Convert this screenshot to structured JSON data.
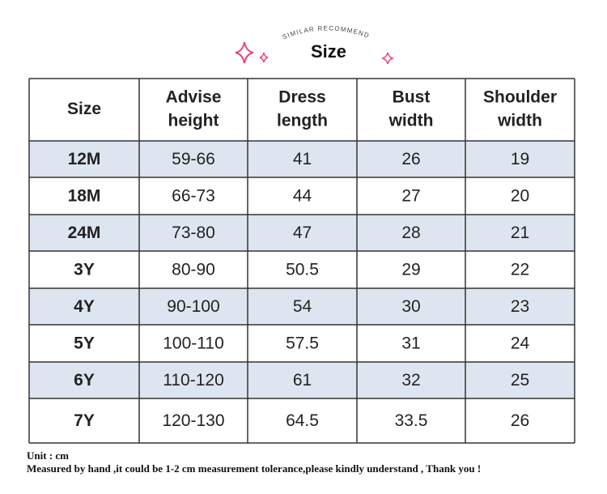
{
  "header": {
    "tagline": "SIMILAR RECOMMEND",
    "title": "Size"
  },
  "table": {
    "columns": [
      [
        "Size"
      ],
      [
        "Advise",
        "height"
      ],
      [
        "Dress",
        "length"
      ],
      [
        "Bust",
        "width"
      ],
      [
        "Shoulder",
        "width"
      ]
    ],
    "rows": [
      [
        "12M",
        "59-66",
        "41",
        "26",
        "19"
      ],
      [
        "18M",
        "66-73",
        "44",
        "27",
        "20"
      ],
      [
        "24M",
        "73-80",
        "47",
        "28",
        "21"
      ],
      [
        "3Y",
        "80-90",
        "50.5",
        "29",
        "22"
      ],
      [
        "4Y",
        "90-100",
        "54",
        "30",
        "23"
      ],
      [
        "5Y",
        "100-110",
        "57.5",
        "31",
        "24"
      ],
      [
        "6Y",
        "110-120",
        "61",
        "32",
        "25"
      ],
      [
        "7Y",
        "120-130",
        "64.5",
        "33.5",
        "26"
      ]
    ]
  },
  "footer": {
    "unit": "Unit : cm",
    "note": "Measured by hand ,it could be 1-2 cm measurement tolerance,please kindly understand , Thank you !"
  }
}
